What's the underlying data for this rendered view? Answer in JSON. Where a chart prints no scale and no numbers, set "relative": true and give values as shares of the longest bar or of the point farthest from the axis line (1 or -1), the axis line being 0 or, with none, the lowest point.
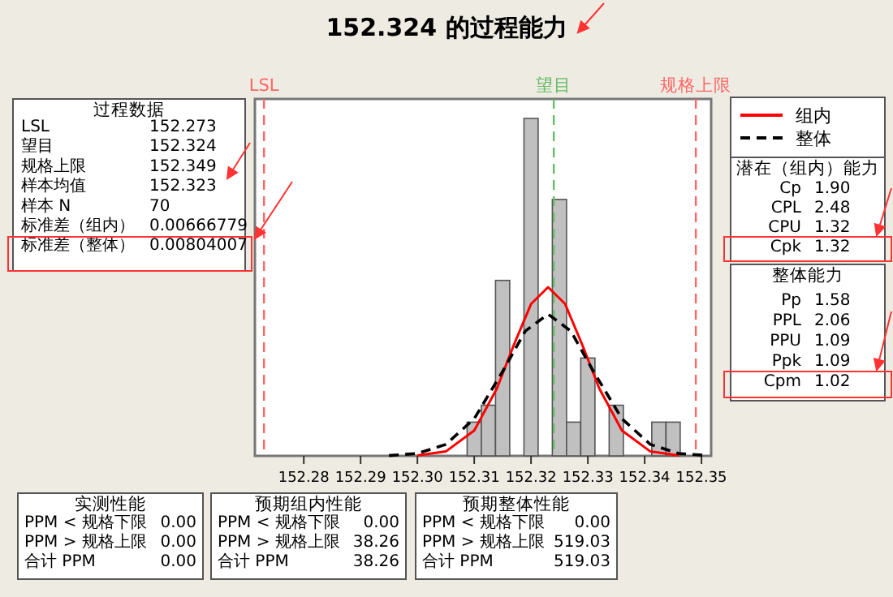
{
  "chart_data": [
    {
      "type": "histogram",
      "title": "152.324 的过程能力",
      "relative": true,
      "color": "#c0c0c0",
      "bins": [
        152.30875,
        152.31125,
        152.31375,
        152.31625,
        152.31875,
        152.32125,
        152.32375,
        152.32625,
        152.32875,
        152.33125,
        152.33375,
        152.33625,
        152.33875,
        152.34125,
        152.34375,
        152.34625
      ],
      "values": [
        0.1,
        0.15,
        0.52,
        0,
        1.0,
        0,
        0.76,
        0.1,
        0.29,
        0,
        0.15,
        0,
        0,
        0.1,
        0.1
      ],
      "xlim": [
        152.2714,
        152.3517
      ],
      "xticks": [
        152.28,
        152.29,
        {
          "value": 152.3,
          "label": "152.30"
        },
        152.31,
        152.32,
        152.33,
        152.34,
        152.35
      ],
      "series": [
        {
          "type": "line",
          "name": "组内",
          "color": "#ff0000",
          "line_style": "solid",
          "x": [
            152.3,
            152.305,
            152.31,
            152.314,
            152.317,
            152.32,
            152.323,
            152.326,
            152.329,
            152.332,
            152.336,
            152.341,
            152.346
          ],
          "values": [
            0.001,
            0.013,
            0.075,
            0.2,
            0.33,
            0.45,
            0.5,
            0.45,
            0.33,
            0.2,
            0.075,
            0.013,
            0.001
          ]
        },
        {
          "type": "line",
          "name": "整体",
          "color": "#000000",
          "line_style": "dashed",
          "x": [
            152.295,
            152.3,
            152.305,
            152.31,
            152.315,
            152.319,
            152.323,
            152.327,
            152.331,
            152.336,
            152.341,
            152.346,
            152.351
          ],
          "values": [
            0.001,
            0.007,
            0.034,
            0.11,
            0.25,
            0.37,
            0.42,
            0.37,
            0.25,
            0.11,
            0.034,
            0.007,
            0.001
          ]
        }
      ],
      "ref_lines": [
        {
          "axis": "x",
          "value": 152.273,
          "label": "LSL",
          "color": "#ff6666",
          "line_style": "dashed"
        },
        {
          "axis": "x",
          "value": 152.324,
          "label": "望目",
          "color": "#66bb66",
          "line_style": "dashed"
        },
        {
          "axis": "x",
          "value": 152.349,
          "label": "规格上限",
          "color": "#ff6666",
          "line_style": "dashed"
        }
      ],
      "legend": "right",
      "grid": false
    },
    {
      "type": "other",
      "title": "过程数据",
      "annotations": [
        "LSL",
        "152.273",
        "望目",
        "152.324",
        "规格上限",
        "152.349",
        "样本均值",
        "152.323",
        "样本 N",
        "70",
        "标准差（组内）",
        "0.00666779",
        "标准差（整体）",
        "0.00804007"
      ]
    },
    {
      "type": "other",
      "title": "潜在（组内）能力",
      "annotations": [
        "Cp",
        "1.90",
        "CPL",
        "2.48",
        "CPU",
        "1.32",
        "Cpk",
        "1.32"
      ]
    },
    {
      "type": "other",
      "title": "整体能力",
      "annotations": [
        "Pp",
        "1.58",
        "PPL",
        "2.06",
        "PPU",
        "1.09",
        "Ppk",
        "1.09",
        "Cpm",
        "1.02"
      ]
    },
    {
      "type": "other",
      "title": "实测性能",
      "annotations": [
        "PPM < 规格下限",
        "0.00",
        "PPM > 规格上限",
        "0.00",
        "合计 PPM",
        "0.00"
      ]
    },
    {
      "type": "other",
      "title": "预期组内性能",
      "annotations": [
        "PPM < 规格下限",
        "0.00",
        "PPM > 规格上限",
        "38.26",
        "合计 PPM",
        "38.26"
      ]
    },
    {
      "type": "other",
      "title": "预期整体性能",
      "annotations": [
        "PPM < 规格下限",
        "0.00",
        "PPM > 规格上限",
        "519.03",
        "合计 PPM",
        "519.03"
      ]
    }
  ]
}
